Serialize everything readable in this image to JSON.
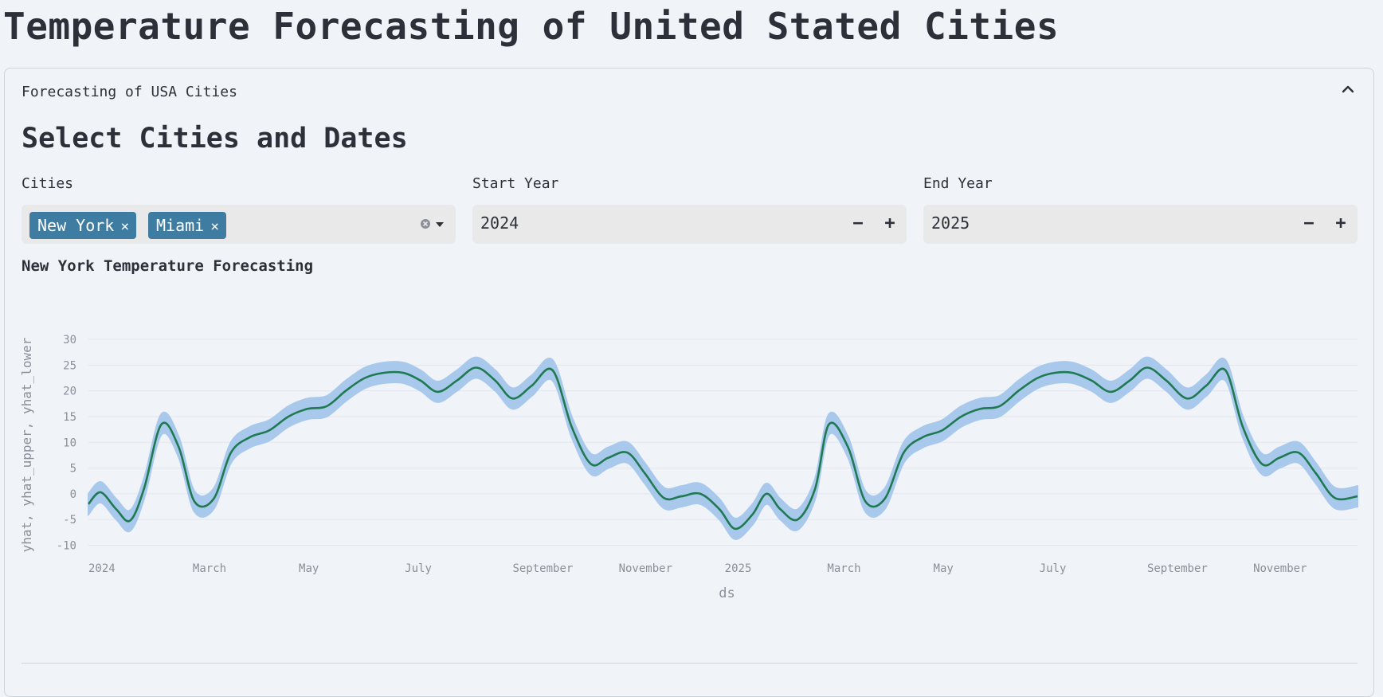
{
  "page": {
    "title": "Temperature Forecasting of United Stated Cities"
  },
  "expander": {
    "label": "Forecasting of USA Cities",
    "chevron_icon": "chevron-up-icon"
  },
  "controls": {
    "heading": "Select Cities and Dates",
    "cities": {
      "label": "Cities",
      "selected": [
        "New York",
        "Miami"
      ],
      "remove_glyph": "×",
      "clear_icon": "clear-circle-icon",
      "dropdown_icon": "caret-down-icon"
    },
    "start_year": {
      "label": "Start Year",
      "value": "2024",
      "minus": "−",
      "plus": "+"
    },
    "end_year": {
      "label": "End Year",
      "value": "2025",
      "minus": "−",
      "plus": "+"
    }
  },
  "colors": {
    "background": "#f0f3f8",
    "chip": "#3e7ca1",
    "band": "#a8c8ec",
    "line": "#1f7a52",
    "grid": "#e3e6ec",
    "axis_text": "#8b8f98"
  },
  "chart_data": {
    "type": "area",
    "title": "New York Temperature Forecasting",
    "xlabel": "ds",
    "ylabel": "yhat, yhat_upper, yhat_lower",
    "x_range": [
      "2024-01-01",
      "2025-12-31"
    ],
    "ylim": [
      -11,
      30
    ],
    "y_ticks": [
      -10,
      -5,
      0,
      5,
      10,
      15,
      20,
      25,
      30
    ],
    "x_ticks": [
      {
        "date": "2024-01-01",
        "label": "2024"
      },
      {
        "date": "2024-03-01",
        "label": "March"
      },
      {
        "date": "2024-05-01",
        "label": "May"
      },
      {
        "date": "2024-07-01",
        "label": "July"
      },
      {
        "date": "2024-09-01",
        "label": "September"
      },
      {
        "date": "2024-11-01",
        "label": "November"
      },
      {
        "date": "2025-01-01",
        "label": "2025"
      },
      {
        "date": "2025-03-01",
        "label": "March"
      },
      {
        "date": "2025-05-01",
        "label": "May"
      },
      {
        "date": "2025-07-01",
        "label": "July"
      },
      {
        "date": "2025-09-01",
        "label": "September"
      },
      {
        "date": "2025-11-01",
        "label": "November"
      }
    ],
    "grid": true,
    "band_halfwidth": 2,
    "series": [
      {
        "name": "yhat",
        "x": [
          "2024-01-01",
          "2024-01-08",
          "2024-01-17",
          "2024-01-25",
          "2024-02-02",
          "2024-02-12",
          "2024-02-22",
          "2024-03-02",
          "2024-03-13",
          "2024-03-23",
          "2024-04-03",
          "2024-04-14",
          "2024-04-25",
          "2024-05-06",
          "2024-05-17",
          "2024-05-28",
          "2024-06-08",
          "2024-06-19",
          "2024-06-30",
          "2024-07-10",
          "2024-07-20",
          "2024-07-31",
          "2024-08-11",
          "2024-08-22",
          "2024-09-01",
          "2024-09-12",
          "2024-09-24",
          "2024-10-05",
          "2024-10-16",
          "2024-10-26",
          "2024-11-06",
          "2024-11-16",
          "2024-11-27",
          "2024-12-07",
          "2024-12-18",
          "2024-12-29",
          "2025-01-07",
          "2025-01-17",
          "2025-01-25",
          "2025-02-02",
          "2025-02-12",
          "2025-02-22",
          "2025-03-02",
          "2025-03-13",
          "2025-03-23",
          "2025-04-03",
          "2025-04-14",
          "2025-04-25",
          "2025-05-06",
          "2025-05-17",
          "2025-05-28",
          "2025-06-08",
          "2025-06-19",
          "2025-06-30",
          "2025-07-10",
          "2025-07-20",
          "2025-07-31",
          "2025-08-11",
          "2025-08-22",
          "2025-09-01",
          "2025-09-12",
          "2025-09-24",
          "2025-10-05",
          "2025-10-16",
          "2025-10-26",
          "2025-11-06",
          "2025-11-16",
          "2025-11-27",
          "2025-12-07",
          "2025-12-18",
          "2025-12-31"
        ],
        "values": [
          -2,
          0.3,
          -3,
          -5.2,
          1,
          13.5,
          9,
          -1.5,
          -1,
          8,
          11,
          12.3,
          15,
          16.5,
          17,
          20,
          22.5,
          23.5,
          23.5,
          22,
          19.8,
          22,
          24.5,
          22,
          18.5,
          21,
          24,
          13,
          5.8,
          7,
          8,
          4,
          -0.8,
          -0.5,
          0,
          -3,
          -6.8,
          -4,
          0,
          -3,
          -5,
          1,
          13.5,
          9,
          -1.5,
          -1,
          8,
          11,
          12.3,
          15,
          16.5,
          17,
          20,
          22.5,
          23.5,
          23.5,
          22,
          19.8,
          22,
          24.5,
          22,
          18.5,
          21,
          24,
          13,
          5.8,
          7,
          8,
          4,
          -0.8,
          -0.5
        ]
      }
    ]
  }
}
